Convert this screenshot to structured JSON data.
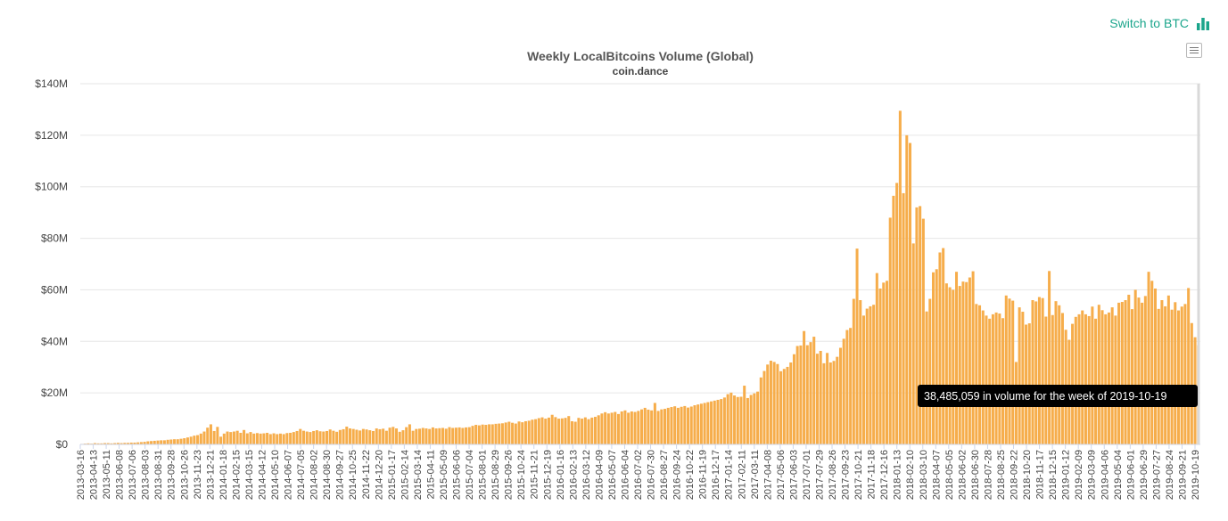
{
  "switch_label": "Switch to BTC",
  "switch_icon": "bar-chart-icon",
  "accent_color": "#1aa58b",
  "bar_color": "#f6ad4b",
  "tooltip_text": "38,485,059 in volume for the week of 2019-10-19",
  "chart_data": {
    "type": "bar",
    "title": "Weekly LocalBitcoins Volume (Global)",
    "subtitle": "coin.dance",
    "ylim": [
      0,
      140000000
    ],
    "yticks": [
      "$0",
      "$20M",
      "$40M",
      "$60M",
      "$80M",
      "$100M",
      "$120M",
      "$140M"
    ],
    "xticks": [
      "2013-03-16",
      "2013-04-13",
      "2013-05-11",
      "2013-06-08",
      "2013-07-06",
      "2013-08-03",
      "2013-08-31",
      "2013-09-28",
      "2013-10-26",
      "2013-11-23",
      "2013-12-21",
      "2014-01-18",
      "2014-02-15",
      "2014-03-15",
      "2014-04-12",
      "2014-05-10",
      "2014-06-07",
      "2014-07-05",
      "2014-08-02",
      "2014-08-30",
      "2014-09-27",
      "2014-10-25",
      "2014-11-22",
      "2014-12-20",
      "2015-01-17",
      "2015-02-14",
      "2015-03-14",
      "2015-04-11",
      "2015-05-09",
      "2015-06-06",
      "2015-07-04",
      "2015-08-01",
      "2015-08-29",
      "2015-09-26",
      "2015-10-24",
      "2015-11-21",
      "2015-12-19",
      "2016-01-16",
      "2016-02-13",
      "2016-03-12",
      "2016-04-09",
      "2016-05-07",
      "2016-06-04",
      "2016-07-02",
      "2016-07-30",
      "2016-08-27",
      "2016-09-24",
      "2016-10-22",
      "2016-11-19",
      "2016-12-17",
      "2017-01-14",
      "2017-02-11",
      "2017-03-11",
      "2017-04-08",
      "2017-05-06",
      "2017-06-03",
      "2017-07-01",
      "2017-07-29",
      "2017-08-26",
      "2017-09-23",
      "2017-10-21",
      "2017-11-18",
      "2017-12-16",
      "2018-01-13",
      "2018-02-10",
      "2018-03-10",
      "2018-04-07",
      "2018-05-05",
      "2018-06-02",
      "2018-06-30",
      "2018-07-28",
      "2018-08-25",
      "2018-09-22",
      "2018-10-20",
      "2018-11-17",
      "2018-12-15",
      "2019-01-12",
      "2019-02-09",
      "2019-03-09",
      "2019-04-06",
      "2019-05-04",
      "2019-06-01",
      "2019-06-29",
      "2019-07-27",
      "2019-08-24",
      "2019-09-21",
      "2019-10-19"
    ],
    "grid": true,
    "legend": "none",
    "values": [
      0.2,
      0.3,
      0.4,
      0.3,
      0.5,
      0.4,
      0.4,
      0.5,
      0.5,
      0.4,
      0.5,
      0.6,
      0.5,
      0.6,
      0.6,
      0.7,
      0.7,
      0.8,
      0.9,
      1.0,
      1.2,
      1.3,
      1.4,
      1.5,
      1.6,
      1.6,
      1.8,
      1.9,
      2.0,
      2.0,
      2.2,
      2.4,
      2.7,
      3.0,
      3.4,
      3.6,
      4.2,
      5.0,
      6.5,
      7.8,
      5.2,
      6.8,
      3.0,
      4.2,
      5.0,
      4.8,
      5.0,
      5.3,
      4.5,
      5.6,
      4.3,
      4.8,
      4.2,
      4.4,
      4.2,
      4.3,
      4.5,
      4.0,
      4.3,
      4.0,
      4.2,
      4.0,
      4.4,
      4.5,
      4.8,
      5.2,
      6.0,
      5.3,
      5.0,
      4.8,
      5.2,
      5.5,
      5.1,
      5.0,
      5.2,
      5.8,
      5.3,
      4.9,
      5.6,
      5.9,
      6.9,
      6.2,
      6.0,
      5.7,
      5.4,
      6.0,
      5.8,
      5.5,
      5.2,
      6.2,
      5.9,
      6.1,
      5.3,
      6.5,
      6.8,
      6.2,
      4.9,
      5.5,
      6.7,
      7.8,
      5.3,
      6.0,
      6.1,
      6.4,
      6.2,
      6.0,
      6.6,
      6.2,
      6.3,
      6.4,
      6.1,
      6.7,
      6.4,
      6.5,
      6.6,
      6.4,
      6.6,
      6.7,
      7.2,
      7.6,
      7.4,
      7.7,
      7.6,
      7.8,
      7.8,
      8.0,
      8.1,
      8.2,
      8.5,
      8.8,
      8.4,
      8.1,
      8.9,
      8.6,
      9.0,
      9.2,
      9.6,
      9.8,
      10.2,
      10.5,
      10.0,
      10.4,
      11.5,
      10.6,
      10.0,
      10.1,
      10.3,
      11.0,
      9.0,
      8.8,
      10.3,
      10.0,
      10.5,
      9.8,
      10.4,
      10.7,
      11.3,
      12.0,
      12.5,
      12.0,
      12.3,
      12.6,
      11.8,
      12.8,
      13.2,
      12.3,
      12.8,
      12.6,
      13.0,
      13.6,
      14.2,
      13.5,
      13.2,
      16.1,
      13.0,
      13.6,
      13.8,
      14.2,
      14.5,
      14.8,
      14.2,
      14.6,
      14.9,
      14.3,
      14.7,
      15.2,
      15.5,
      15.8,
      16.1,
      16.4,
      16.7,
      17.0,
      17.3,
      17.6,
      18.2,
      19.5,
      20.1,
      19.0,
      18.4,
      18.5,
      22.8,
      18.0,
      19.2,
      19.8,
      20.5,
      26.0,
      28.5,
      31.0,
      32.5,
      32.0,
      31.2,
      28.4,
      29.3,
      30.1,
      31.8,
      35.0,
      38.2,
      38.4,
      44.0,
      38.5,
      39.7,
      41.8,
      35.2,
      36.3,
      31.5,
      35.5,
      31.8,
      32.4,
      34.0,
      37.5,
      41.0,
      44.4,
      45.2,
      56.5,
      76.0,
      56.0,
      50.0,
      52.7,
      53.6,
      54.2,
      66.5,
      60.5,
      62.8,
      63.5,
      88.0,
      96.5,
      101.5,
      129.5,
      97.5,
      120.0,
      117.0,
      78.0,
      92.0,
      92.5,
      87.6,
      51.6,
      56.5,
      66.8,
      68.0,
      74.5,
      76.2,
      62.5,
      61.0,
      60.0,
      67.0,
      61.5,
      63.2,
      63.0,
      64.8,
      67.2,
      54.5,
      54.0,
      52.0,
      50.0,
      48.8,
      50.5,
      51.2,
      50.8,
      49.0,
      57.8,
      56.6,
      55.8,
      32.0,
      53.2,
      51.5,
      46.5,
      47.0,
      56.0,
      55.5,
      57.2,
      56.8,
      49.6,
      67.3,
      50.2,
      55.6,
      54.0,
      51.0,
      44.5,
      40.6,
      46.8,
      49.5,
      50.5,
      52.0,
      50.5,
      49.8,
      53.5,
      48.8,
      54.2,
      52.1,
      50.5,
      51.2,
      53.2,
      50.0,
      55.0,
      55.3,
      56.0,
      58.1,
      52.5,
      60.0,
      57.0,
      55.0,
      57.6,
      67.0,
      63.5,
      60.5,
      52.6,
      56.0,
      53.6,
      57.8,
      52.3,
      55.2,
      52.0,
      53.5,
      54.5,
      60.7,
      47.1,
      41.6,
      38.5
    ]
  }
}
